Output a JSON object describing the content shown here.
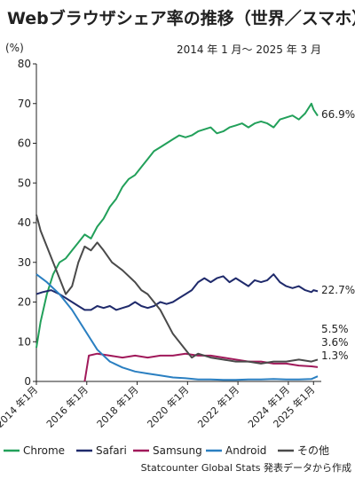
{
  "chart_data": {
    "type": "line",
    "title": "Webブラウザシェア率の推移（世界／スマホ）",
    "subtitle": "2014 年 1 月〜 2025 年 3 月",
    "yunit": "(%)",
    "ylim": [
      0,
      80
    ],
    "yticks": [
      0,
      10,
      20,
      30,
      40,
      50,
      60,
      70,
      80
    ],
    "xlim": [
      "2014-01",
      "2025-03"
    ],
    "xticks": [
      {
        "date": "2014-01",
        "label": "2014 年1月"
      },
      {
        "date": "2016-01",
        "label": "2016 年1月"
      },
      {
        "date": "2018-01",
        "label": "2018 年1月"
      },
      {
        "date": "2020-01",
        "label": "2020 年1月"
      },
      {
        "date": "2022-01",
        "label": "2022 年1月"
      },
      {
        "date": "2024-01",
        "label": "2024 年1月"
      },
      {
        "date": "2025-01",
        "label": "2025 年1月"
      }
    ],
    "grid": false,
    "legend_position": "bottom",
    "source": "Statcounter Global Stats 発表データから作成",
    "series": [
      {
        "name": "Chrome",
        "color": "#22a05a",
        "end_label": "66.9%",
        "points": [
          [
            "2014-01",
            8.5
          ],
          [
            "2014-03",
            15
          ],
          [
            "2014-06",
            22
          ],
          [
            "2014-09",
            27
          ],
          [
            "2014-12",
            30
          ],
          [
            "2015-03",
            31
          ],
          [
            "2015-06",
            33
          ],
          [
            "2015-09",
            35
          ],
          [
            "2015-12",
            37
          ],
          [
            "2016-03",
            36
          ],
          [
            "2016-06",
            39
          ],
          [
            "2016-09",
            41
          ],
          [
            "2016-12",
            44
          ],
          [
            "2017-03",
            46
          ],
          [
            "2017-06",
            49
          ],
          [
            "2017-09",
            51
          ],
          [
            "2017-12",
            52
          ],
          [
            "2018-03",
            54
          ],
          [
            "2018-06",
            56
          ],
          [
            "2018-09",
            58
          ],
          [
            "2018-12",
            59
          ],
          [
            "2019-03",
            60
          ],
          [
            "2019-06",
            61
          ],
          [
            "2019-09",
            62
          ],
          [
            "2019-12",
            61.5
          ],
          [
            "2020-03",
            62
          ],
          [
            "2020-06",
            63
          ],
          [
            "2020-09",
            63.5
          ],
          [
            "2020-12",
            64
          ],
          [
            "2021-03",
            62.5
          ],
          [
            "2021-06",
            63
          ],
          [
            "2021-09",
            64
          ],
          [
            "2021-12",
            64.5
          ],
          [
            "2022-03",
            65
          ],
          [
            "2022-06",
            64
          ],
          [
            "2022-09",
            65
          ],
          [
            "2022-12",
            65.5
          ],
          [
            "2023-03",
            65
          ],
          [
            "2023-06",
            64
          ],
          [
            "2023-09",
            66
          ],
          [
            "2023-12",
            66.5
          ],
          [
            "2024-03",
            67
          ],
          [
            "2024-06",
            66
          ],
          [
            "2024-09",
            67.5
          ],
          [
            "2024-12",
            70
          ],
          [
            "2025-01",
            68.5
          ],
          [
            "2025-03",
            66.9
          ]
        ]
      },
      {
        "name": "Safari",
        "color": "#1f2a6b",
        "end_label": "22.7%",
        "points": [
          [
            "2014-01",
            22
          ],
          [
            "2014-04",
            22.5
          ],
          [
            "2014-08",
            23
          ],
          [
            "2014-12",
            22
          ],
          [
            "2015-03",
            21
          ],
          [
            "2015-06",
            20
          ],
          [
            "2015-09",
            19
          ],
          [
            "2015-12",
            18
          ],
          [
            "2016-03",
            18
          ],
          [
            "2016-06",
            19
          ],
          [
            "2016-09",
            18.5
          ],
          [
            "2016-12",
            19
          ],
          [
            "2017-03",
            18
          ],
          [
            "2017-06",
            18.5
          ],
          [
            "2017-09",
            19
          ],
          [
            "2017-12",
            20
          ],
          [
            "2018-03",
            19
          ],
          [
            "2018-06",
            18.5
          ],
          [
            "2018-09",
            19
          ],
          [
            "2018-12",
            20
          ],
          [
            "2019-03",
            19.5
          ],
          [
            "2019-06",
            20
          ],
          [
            "2019-09",
            21
          ],
          [
            "2019-12",
            22
          ],
          [
            "2020-03",
            23
          ],
          [
            "2020-06",
            25
          ],
          [
            "2020-09",
            26
          ],
          [
            "2020-12",
            25
          ],
          [
            "2021-03",
            26
          ],
          [
            "2021-06",
            26.5
          ],
          [
            "2021-09",
            25
          ],
          [
            "2021-12",
            26
          ],
          [
            "2022-03",
            25
          ],
          [
            "2022-06",
            24
          ],
          [
            "2022-09",
            25.5
          ],
          [
            "2022-12",
            25
          ],
          [
            "2023-03",
            25.5
          ],
          [
            "2023-06",
            27
          ],
          [
            "2023-09",
            25
          ],
          [
            "2023-12",
            24
          ],
          [
            "2024-03",
            23.5
          ],
          [
            "2024-06",
            24
          ],
          [
            "2024-09",
            23
          ],
          [
            "2024-12",
            22.5
          ],
          [
            "2025-01",
            23
          ],
          [
            "2025-03",
            22.7
          ]
        ]
      },
      {
        "name": "Samsung",
        "color": "#a0195a",
        "end_label": "3.6%",
        "points": [
          [
            "2015-12",
            0
          ],
          [
            "2016-02",
            6.5
          ],
          [
            "2016-06",
            7
          ],
          [
            "2016-12",
            6.5
          ],
          [
            "2017-06",
            6
          ],
          [
            "2017-12",
            6.5
          ],
          [
            "2018-06",
            6
          ],
          [
            "2018-12",
            6.5
          ],
          [
            "2019-06",
            6.5
          ],
          [
            "2019-12",
            7
          ],
          [
            "2020-06",
            6.5
          ],
          [
            "2020-12",
            6.5
          ],
          [
            "2021-06",
            6
          ],
          [
            "2021-12",
            5.5
          ],
          [
            "2022-06",
            5
          ],
          [
            "2022-12",
            5
          ],
          [
            "2023-06",
            4.5
          ],
          [
            "2023-12",
            4.5
          ],
          [
            "2024-06",
            4
          ],
          [
            "2024-12",
            3.8
          ],
          [
            "2025-03",
            3.6
          ]
        ]
      },
      {
        "name": "Android",
        "color": "#2a7fc1",
        "end_label": "1.3%",
        "points": [
          [
            "2014-01",
            27
          ],
          [
            "2014-06",
            25
          ],
          [
            "2014-12",
            22
          ],
          [
            "2015-06",
            18
          ],
          [
            "2015-12",
            13
          ],
          [
            "2016-06",
            8
          ],
          [
            "2016-12",
            5
          ],
          [
            "2017-06",
            3.5
          ],
          [
            "2017-12",
            2.5
          ],
          [
            "2018-06",
            2
          ],
          [
            "2018-12",
            1.5
          ],
          [
            "2019-06",
            1
          ],
          [
            "2019-12",
            0.8
          ],
          [
            "2020-06",
            0.5
          ],
          [
            "2020-12",
            0.5
          ],
          [
            "2021-06",
            0.4
          ],
          [
            "2021-12",
            0.4
          ],
          [
            "2022-06",
            0.5
          ],
          [
            "2022-12",
            0.5
          ],
          [
            "2023-06",
            0.6
          ],
          [
            "2023-12",
            0.5
          ],
          [
            "2024-06",
            0.5
          ],
          [
            "2024-12",
            0.6
          ],
          [
            "2025-03",
            1.3
          ]
        ]
      },
      {
        "name": "その他",
        "color": "#4a4a4a",
        "end_label": "5.5%",
        "points": [
          [
            "2014-01",
            42
          ],
          [
            "2014-03",
            38
          ],
          [
            "2014-06",
            34
          ],
          [
            "2014-09",
            30
          ],
          [
            "2014-12",
            26
          ],
          [
            "2015-03",
            22
          ],
          [
            "2015-06",
            24
          ],
          [
            "2015-09",
            30
          ],
          [
            "2015-12",
            34
          ],
          [
            "2016-03",
            33
          ],
          [
            "2016-06",
            35
          ],
          [
            "2016-09",
            33
          ],
          [
            "2017-01",
            30
          ],
          [
            "2017-06",
            28
          ],
          [
            "2017-12",
            25
          ],
          [
            "2018-03",
            23
          ],
          [
            "2018-06",
            22
          ],
          [
            "2018-12",
            18
          ],
          [
            "2019-06",
            12
          ],
          [
            "2019-12",
            8
          ],
          [
            "2020-03",
            6
          ],
          [
            "2020-06",
            7
          ],
          [
            "2020-12",
            6
          ],
          [
            "2021-06",
            5.5
          ],
          [
            "2021-12",
            5
          ],
          [
            "2022-06",
            5
          ],
          [
            "2022-12",
            4.5
          ],
          [
            "2023-06",
            5
          ],
          [
            "2023-12",
            5
          ],
          [
            "2024-06",
            5.5
          ],
          [
            "2024-12",
            5
          ],
          [
            "2025-03",
            5.5
          ]
        ]
      }
    ]
  }
}
